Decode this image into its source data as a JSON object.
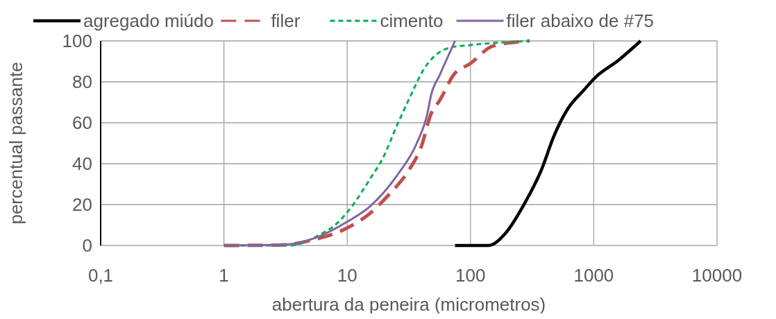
{
  "chart_data": {
    "type": "line",
    "xlabel": "abertura da peneira (micrometros)",
    "ylabel": "percentual passante",
    "log": "x",
    "xlim": [
      0.1,
      10000
    ],
    "xticks": [
      {
        "value": 0.1,
        "label": "0,1"
      },
      1,
      10,
      100,
      1000,
      10000
    ],
    "ylim": [
      0,
      100
    ],
    "yticks": [
      0,
      20,
      40,
      60,
      80,
      100
    ],
    "grid": true,
    "legend": "top",
    "marker": "none",
    "series": [
      {
        "name": "agregado miúdo",
        "color": "#000000",
        "line_style": "solid",
        "x": [
          75,
          100,
          140,
          191,
          268,
          380,
          473,
          615,
          830,
          1025,
          1585,
          2400
        ],
        "values": [
          0,
          0,
          0,
          5.8,
          19.4,
          37.6,
          53.2,
          66.8,
          75.9,
          82,
          90.5,
          100
        ]
      },
      {
        "name": "filer",
        "color": "#c0504d",
        "line_style": "dashed",
        "x": [
          1,
          2.75,
          5.5,
          9.2,
          15.5,
          21.9,
          31,
          40,
          47.9,
          56.4,
          73,
          100,
          152,
          302
        ],
        "values": [
          0,
          0.2,
          3,
          7.5,
          16,
          25,
          36,
          48.5,
          64.4,
          71,
          83.4,
          89,
          97.5,
          100
        ]
      },
      {
        "name": "cimento",
        "color": "#00b050",
        "line_style": "dotted",
        "x": [
          1,
          3.4,
          5.75,
          8.5,
          11,
          15.5,
          19.2,
          25.9,
          32.3,
          41.9,
          49.5,
          70.6,
          100,
          302
        ],
        "values": [
          0,
          0,
          4.7,
          11.5,
          19.4,
          33,
          42,
          60,
          72.5,
          86.2,
          91.8,
          96.9,
          98,
          100
        ]
      },
      {
        "name": "filer abaixo de #75",
        "color": "#8064a2",
        "line_style": "solid",
        "x": [
          1,
          3.1,
          5.5,
          10,
          15.5,
          25.9,
          36.7,
          44.7,
          47.9,
          56.4,
          75
        ],
        "values": [
          0,
          0.4,
          3.7,
          11.6,
          19.4,
          35,
          50,
          64.4,
          73.4,
          83.4,
          100
        ]
      }
    ]
  }
}
